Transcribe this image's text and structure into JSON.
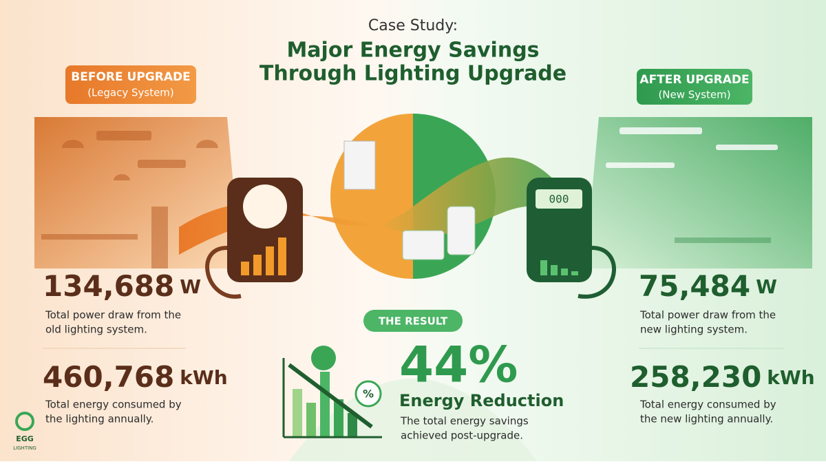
{
  "header": {
    "kicker": "Case Study:",
    "title_lines": [
      "Major Energy Savings",
      "Through Lighting Upgrade"
    ]
  },
  "before": {
    "badge": "BEFORE UPGRADE",
    "badge_sub": "(Legacy System)",
    "power": {
      "value": "134,688",
      "unit": "W",
      "description_lines": [
        "Total power draw from the",
        "old lighting system."
      ]
    },
    "energy": {
      "value": "460,768",
      "unit": "kWh",
      "description_lines": [
        "Total energy consumed by",
        "the lighting annually."
      ]
    }
  },
  "after": {
    "badge": "AFTER UPGRADE",
    "badge_sub": "(New System)",
    "meter_display": "000",
    "power": {
      "value": "75,484",
      "unit": "W",
      "description_lines": [
        "Total power draw from the",
        "new lighting system."
      ]
    },
    "energy": {
      "value": "258,230",
      "unit": "kWh",
      "description_lines": [
        "Total energy consumed by",
        "the new lighting annually."
      ]
    }
  },
  "result": {
    "badge": "THE RESULT",
    "icon_label": "%",
    "value": "44%",
    "headline": "Energy Reduction",
    "description_lines": [
      "The total energy savings",
      "achieved post-upgrade."
    ]
  },
  "logo": {
    "mark": "EGG",
    "name": "LIGHTING"
  }
}
